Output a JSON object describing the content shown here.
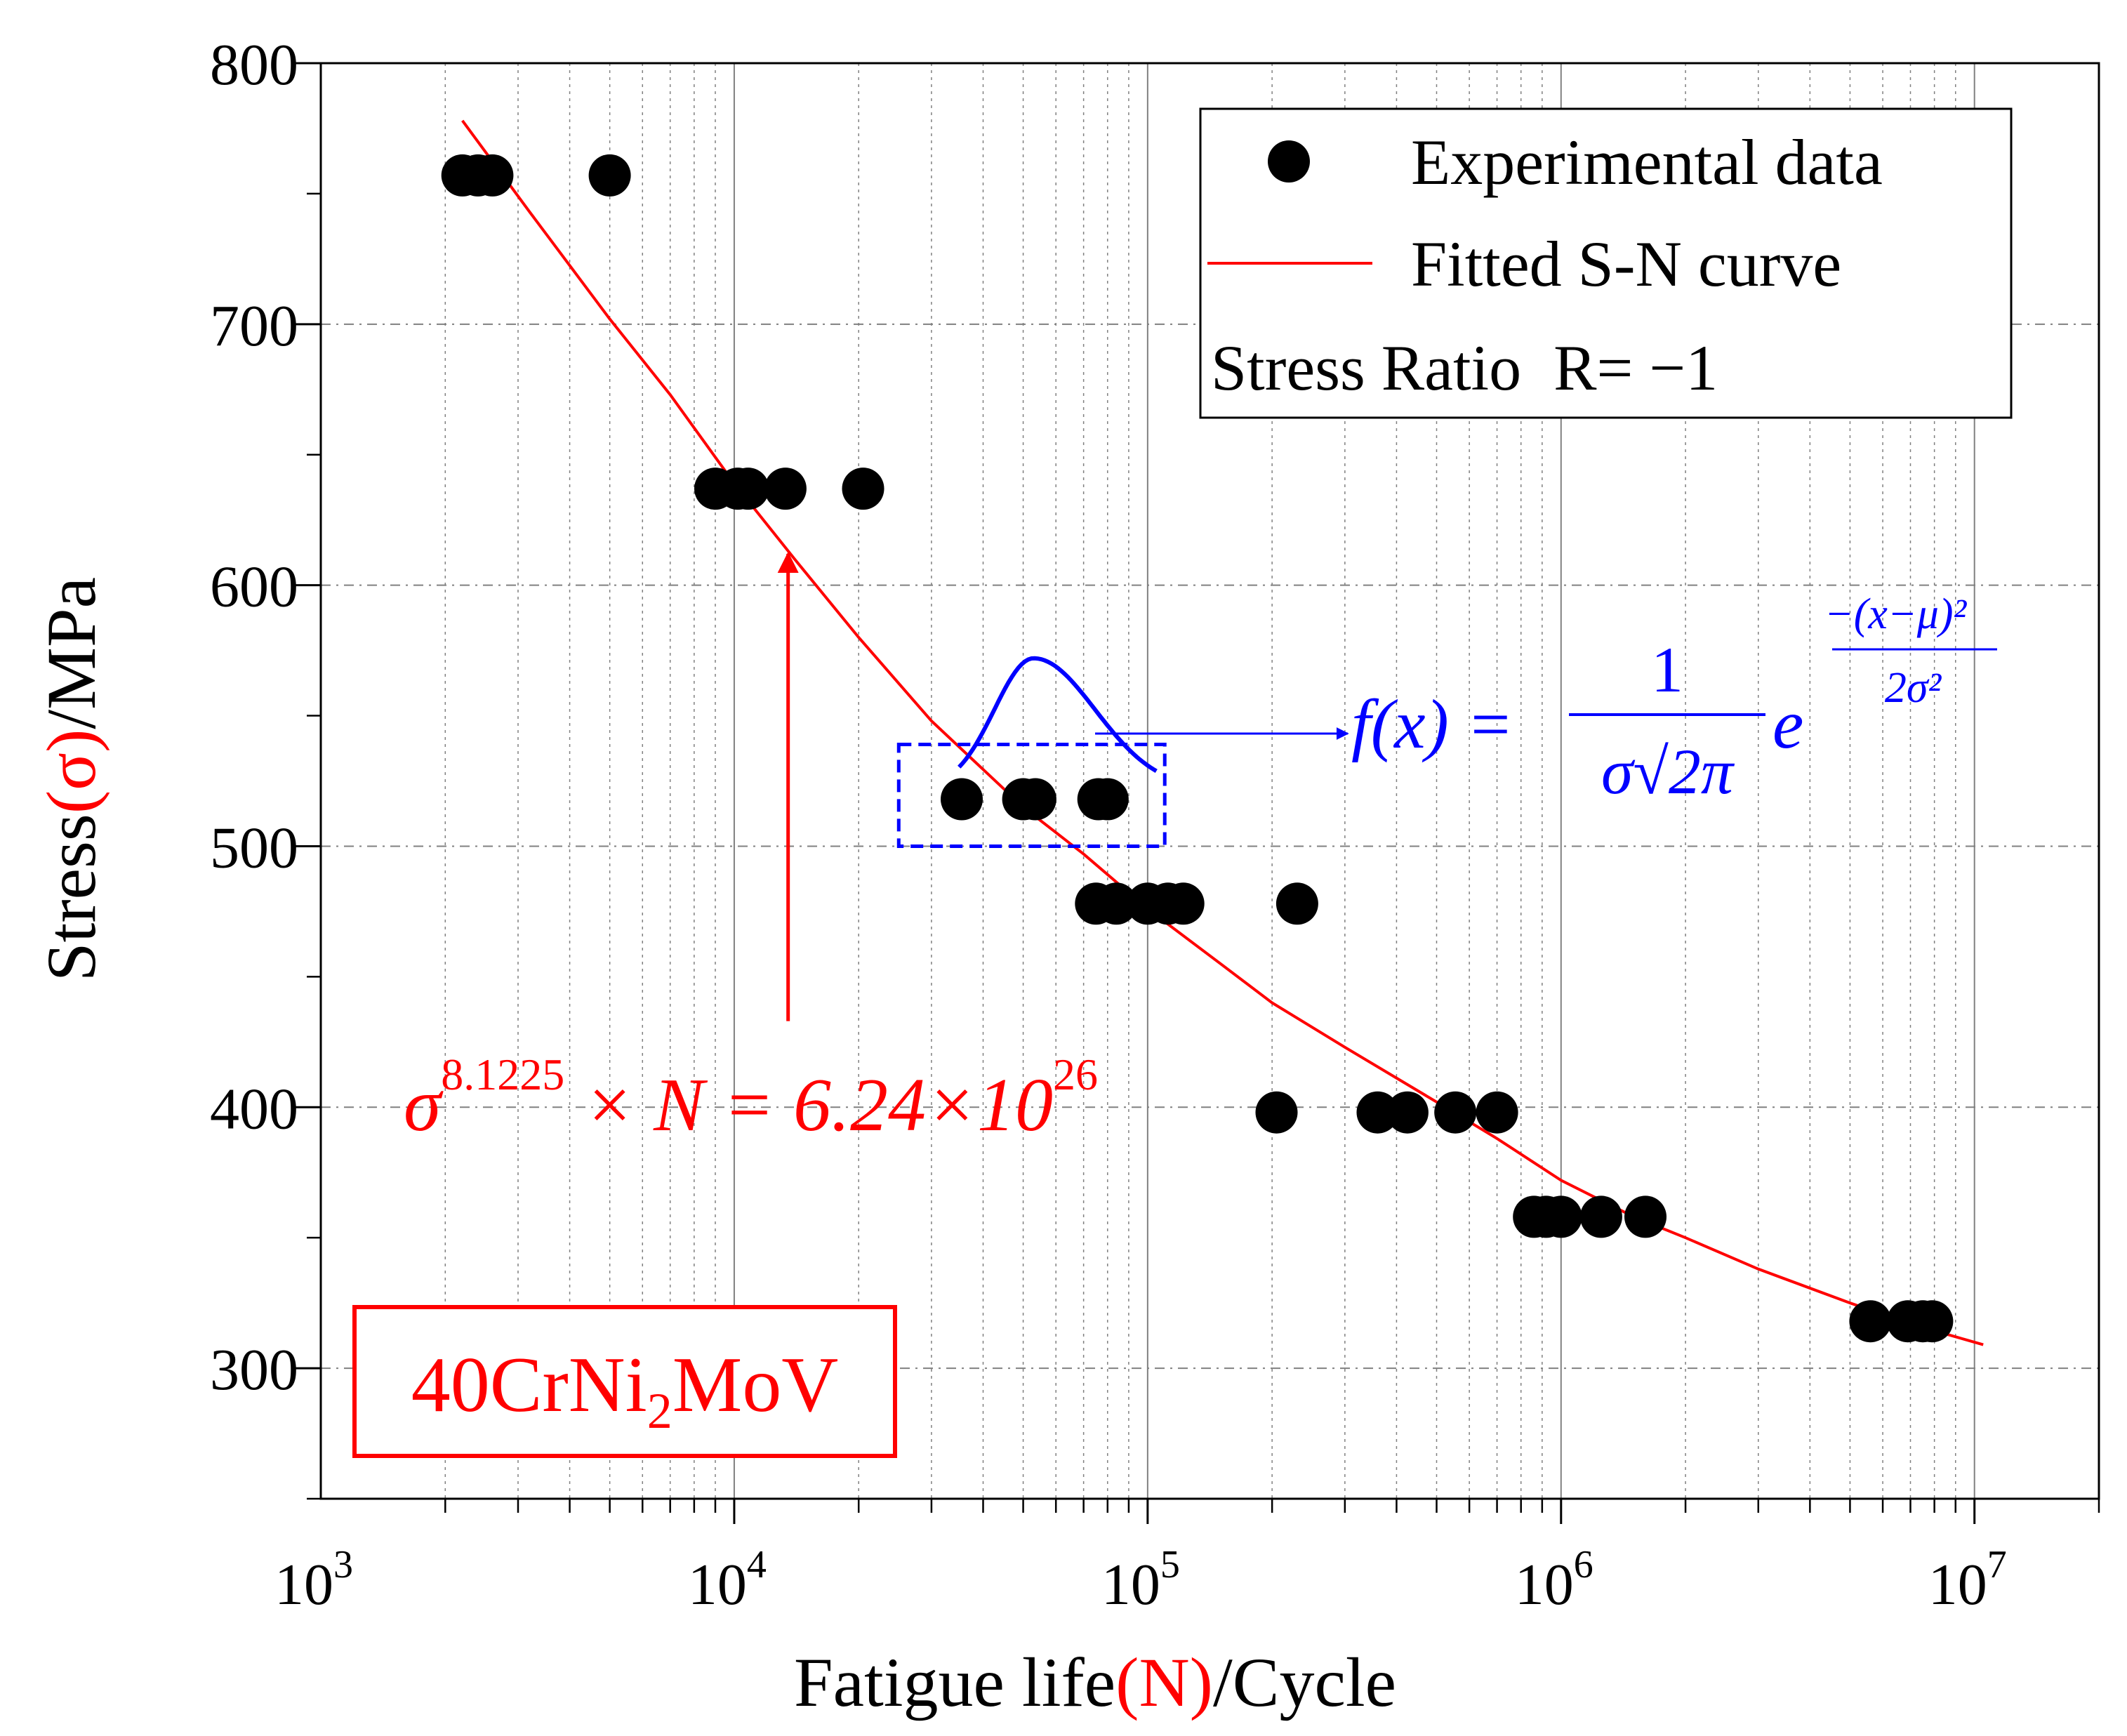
{
  "chart_data": {
    "type": "scatter",
    "title": "",
    "xlabel_parts": [
      "Fatigue life",
      "(N)",
      "/Cycle"
    ],
    "ylabel_parts": [
      "Stress",
      "(σ)",
      "/MPa"
    ],
    "xscale": "log",
    "xlim": [
      1000,
      20000000
    ],
    "ylim": [
      250,
      800
    ],
    "x_ticks": [
      {
        "value": 1000,
        "base": "10",
        "exp": "3"
      },
      {
        "value": 10000,
        "base": "10",
        "exp": "4"
      },
      {
        "value": 100000,
        "base": "10",
        "exp": "5"
      },
      {
        "value": 1000000,
        "base": "10",
        "exp": "6"
      },
      {
        "value": 10000000,
        "base": "10",
        "exp": "7"
      }
    ],
    "y_ticks": [
      300,
      400,
      500,
      600,
      700,
      800
    ],
    "grid": true,
    "legend_position": "top-right",
    "legend": {
      "scatter_label": "Experimental data",
      "line_label": "Fitted S-N curve",
      "ratio_label": "Stress Ratio  R= −1"
    },
    "series": [
      {
        "name": "Experimental data",
        "kind": "scatter",
        "color": "#000000",
        "points": [
          {
            "x": 2200,
            "y": 757
          },
          {
            "x": 2400,
            "y": 757
          },
          {
            "x": 2600,
            "y": 757
          },
          {
            "x": 5000,
            "y": 757
          },
          {
            "x": 9000,
            "y": 637
          },
          {
            "x": 10200,
            "y": 637
          },
          {
            "x": 10800,
            "y": 637
          },
          {
            "x": 13300,
            "y": 637
          },
          {
            "x": 20500,
            "y": 637
          },
          {
            "x": 35500,
            "y": 518
          },
          {
            "x": 50000,
            "y": 518
          },
          {
            "x": 53500,
            "y": 518
          },
          {
            "x": 76000,
            "y": 518
          },
          {
            "x": 80000,
            "y": 518
          },
          {
            "x": 75000,
            "y": 478
          },
          {
            "x": 84000,
            "y": 478
          },
          {
            "x": 100000,
            "y": 478
          },
          {
            "x": 112000,
            "y": 478
          },
          {
            "x": 122000,
            "y": 478
          },
          {
            "x": 230000,
            "y": 478
          },
          {
            "x": 205000,
            "y": 398
          },
          {
            "x": 360000,
            "y": 398
          },
          {
            "x": 425000,
            "y": 398
          },
          {
            "x": 555000,
            "y": 398
          },
          {
            "x": 700000,
            "y": 398
          },
          {
            "x": 860000,
            "y": 358
          },
          {
            "x": 920000,
            "y": 358
          },
          {
            "x": 1000000,
            "y": 358
          },
          {
            "x": 1250000,
            "y": 358
          },
          {
            "x": 1600000,
            "y": 358
          },
          {
            "x": 5600000,
            "y": 318
          },
          {
            "x": 6900000,
            "y": 318
          },
          {
            "x": 7500000,
            "y": 318
          },
          {
            "x": 7900000,
            "y": 318
          }
        ]
      },
      {
        "name": "Fitted S-N curve",
        "kind": "line",
        "color": "#ff0000",
        "points": [
          {
            "x": 2200,
            "y": 778
          },
          {
            "x": 3200,
            "y": 743
          },
          {
            "x": 5000,
            "y": 702
          },
          {
            "x": 7000,
            "y": 673
          },
          {
            "x": 10000,
            "y": 639
          },
          {
            "x": 14000,
            "y": 610
          },
          {
            "x": 20000,
            "y": 580
          },
          {
            "x": 30000,
            "y": 548
          },
          {
            "x": 50000,
            "y": 515
          },
          {
            "x": 70000,
            "y": 497
          },
          {
            "x": 100000,
            "y": 476
          },
          {
            "x": 150000,
            "y": 455
          },
          {
            "x": 200000,
            "y": 440
          },
          {
            "x": 300000,
            "y": 423
          },
          {
            "x": 500000,
            "y": 402
          },
          {
            "x": 700000,
            "y": 388
          },
          {
            "x": 1000000,
            "y": 372
          },
          {
            "x": 1500000,
            "y": 358
          },
          {
            "x": 2000000,
            "y": 350
          },
          {
            "x": 3000000,
            "y": 338
          },
          {
            "x": 5000000,
            "y": 325
          },
          {
            "x": 7000000,
            "y": 317
          },
          {
            "x": 10500000,
            "y": 309
          }
        ]
      }
    ],
    "annotations": {
      "fit_equation": {
        "sigma": "σ",
        "sigma_exp": "8.1225",
        "mid": " × N = 6.24×10",
        "pow_exp": "26",
        "arrow_x": 13500,
        "arrow_from_y": 433,
        "arrow_to_y": 612
      },
      "distribution_box": {
        "x1": 25000,
        "x2": 110000,
        "y1": 500,
        "y2": 539
      },
      "pdf_formula": {
        "lhs": "f(x) =",
        "numerator": "1",
        "denominator": "σ√2π",
        "base": "e",
        "exp_numerator": "−(x−μ)²",
        "exp_denominator": "2σ²"
      },
      "material_label": {
        "main": "40CrNi",
        "sub": "2",
        "tail": "MoV"
      }
    },
    "colors": {
      "accent": "#ff0000",
      "annotation": "#0000ff",
      "points": "#000000",
      "grid": "#808080"
    }
  }
}
